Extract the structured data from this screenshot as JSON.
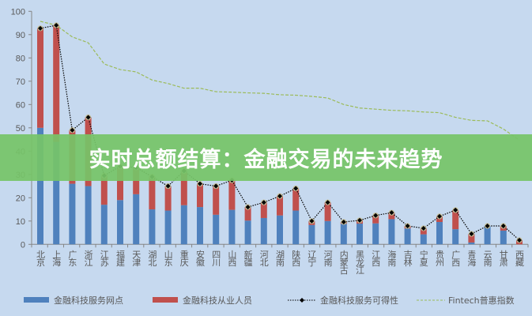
{
  "banner": {
    "title": "实时总额结算：金融交易的未来趋势"
  },
  "chart_data": {
    "type": "bar",
    "stacked": true,
    "title": "",
    "xlabel": "",
    "ylabel": "",
    "ylim": [
      0,
      100
    ],
    "yticks": [
      "0",
      "10",
      "20",
      "30",
      "40",
      "50",
      "60",
      "70",
      "80",
      "90",
      "100"
    ],
    "grid": false,
    "legend_position": "bottom",
    "categories": [
      "北京",
      "上海",
      "广东",
      "浙江",
      "江苏",
      "福建",
      "天津",
      "湖北",
      "山东",
      "重庆",
      "安徽",
      "四川",
      "山西",
      "新疆",
      "河北",
      "湖南",
      "陕西",
      "辽宁",
      "河南",
      "内蒙古",
      "黑龙江",
      "江西",
      "海南",
      "吉林",
      "宁夏",
      "贵州",
      "广西",
      "青海",
      "云南",
      "甘肃",
      "西藏"
    ],
    "series": [
      {
        "name": "金融科技服务网点",
        "type": "bar",
        "color": "#4f81bd",
        "values": [
          50,
          44,
          26,
          25,
          17,
          19,
          21.5,
          15,
          14.5,
          16.8,
          16,
          12.7,
          14.8,
          10.2,
          11.3,
          12.4,
          14.5,
          8.3,
          10,
          8.8,
          8.9,
          9,
          10.8,
          6.8,
          4.3,
          9.6,
          6.5,
          0.8,
          7.9,
          5.9,
          0
        ]
      },
      {
        "name": "金融科技从业人员",
        "type": "bar",
        "color": "#c0504d",
        "values": [
          42.7,
          50,
          23,
          29.5,
          12.5,
          14,
          11.5,
          14,
          10.5,
          14.7,
          10,
          12.3,
          12.7,
          5.8,
          6.7,
          8.3,
          9.5,
          1.7,
          8,
          0.8,
          1.4,
          3.4,
          2.8,
          1.1,
          2.6,
          2.4,
          8.2,
          3.7,
          0,
          2,
          1.8
        ]
      },
      {
        "name": "金融科技服务可得性",
        "type": "line",
        "style": "dotted",
        "color": "#000000",
        "values": [
          92.7,
          94,
          49,
          54.5,
          29.5,
          33.5,
          33,
          29,
          25,
          31.5,
          26,
          25,
          27.5,
          16,
          18,
          20.7,
          24,
          10,
          18,
          9.6,
          10.3,
          12.4,
          13.6,
          7.9,
          6.9,
          12,
          14.7,
          4.5,
          7.9,
          7.9,
          1.8
        ]
      },
      {
        "name": "Fintech普惠指数",
        "type": "line",
        "style": "dashed",
        "color": "#9bbb59",
        "values": [
          95.7,
          94,
          89,
          86.5,
          77.4,
          75,
          74,
          70.5,
          69,
          67,
          67,
          65.5,
          65.3,
          65,
          64.8,
          64.2,
          64,
          63.5,
          62.8,
          60,
          58.5,
          58,
          57.5,
          57.3,
          56.8,
          56.5,
          54.5,
          53.2,
          53,
          49.5,
          44.7
        ]
      }
    ]
  }
}
